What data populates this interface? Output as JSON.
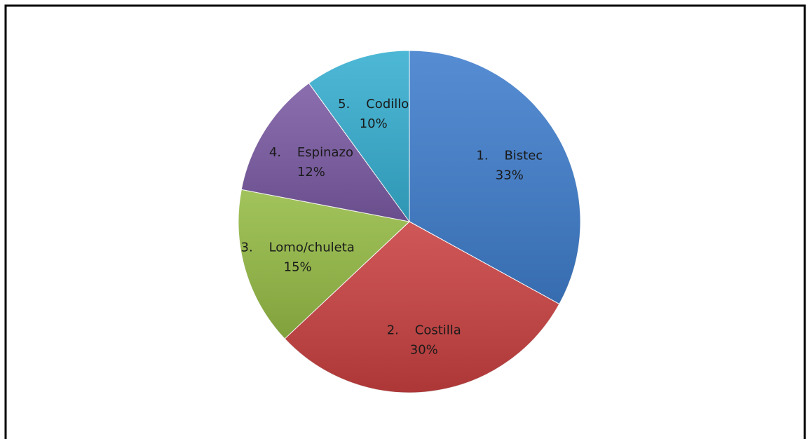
{
  "chart_data": {
    "type": "pie",
    "title": "",
    "categories": [
      "1.    Bistec",
      "2.    Costilla",
      "3.    Lomo/chuleta",
      "4.    Espinazo",
      "5.    Codillo"
    ],
    "values": [
      33,
      30,
      15,
      12,
      10
    ],
    "value_labels": [
      "33%",
      "30%",
      "15%",
      "12%",
      "10%"
    ],
    "colors": [
      "#3f7dcc",
      "#c94040",
      "#95bb45",
      "#7a5aa3",
      "#35aed0"
    ],
    "legend": "none",
    "start_angle": "12 o'clock",
    "direction": "clockwise"
  }
}
